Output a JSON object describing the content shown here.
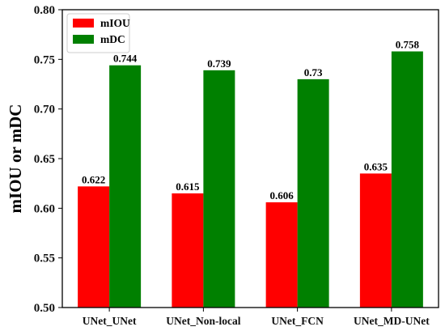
{
  "chart_data": {
    "type": "bar",
    "categories": [
      "UNet_UNet",
      "UNet_Non-local",
      "UNet_FCN",
      "UNet_MD-UNet"
    ],
    "series": [
      {
        "name": "mIOU",
        "color": "#ff0000",
        "values": [
          0.622,
          0.615,
          0.606,
          0.635
        ],
        "labels": [
          "0.622",
          "0.615",
          "0.606",
          "0.635"
        ]
      },
      {
        "name": "mDC",
        "color": "#008000",
        "values": [
          0.744,
          0.739,
          0.73,
          0.758
        ],
        "labels": [
          "0.744",
          "0.739",
          "0.73",
          "0.758"
        ]
      }
    ],
    "ylabel": "mIOU or mDC",
    "xlabel": "",
    "ylim": [
      0.5,
      0.8
    ],
    "yticks": [
      "0.50",
      "0.55",
      "0.60",
      "0.65",
      "0.70",
      "0.75",
      "0.80"
    ],
    "grid": false,
    "legend_position": "top-left"
  }
}
